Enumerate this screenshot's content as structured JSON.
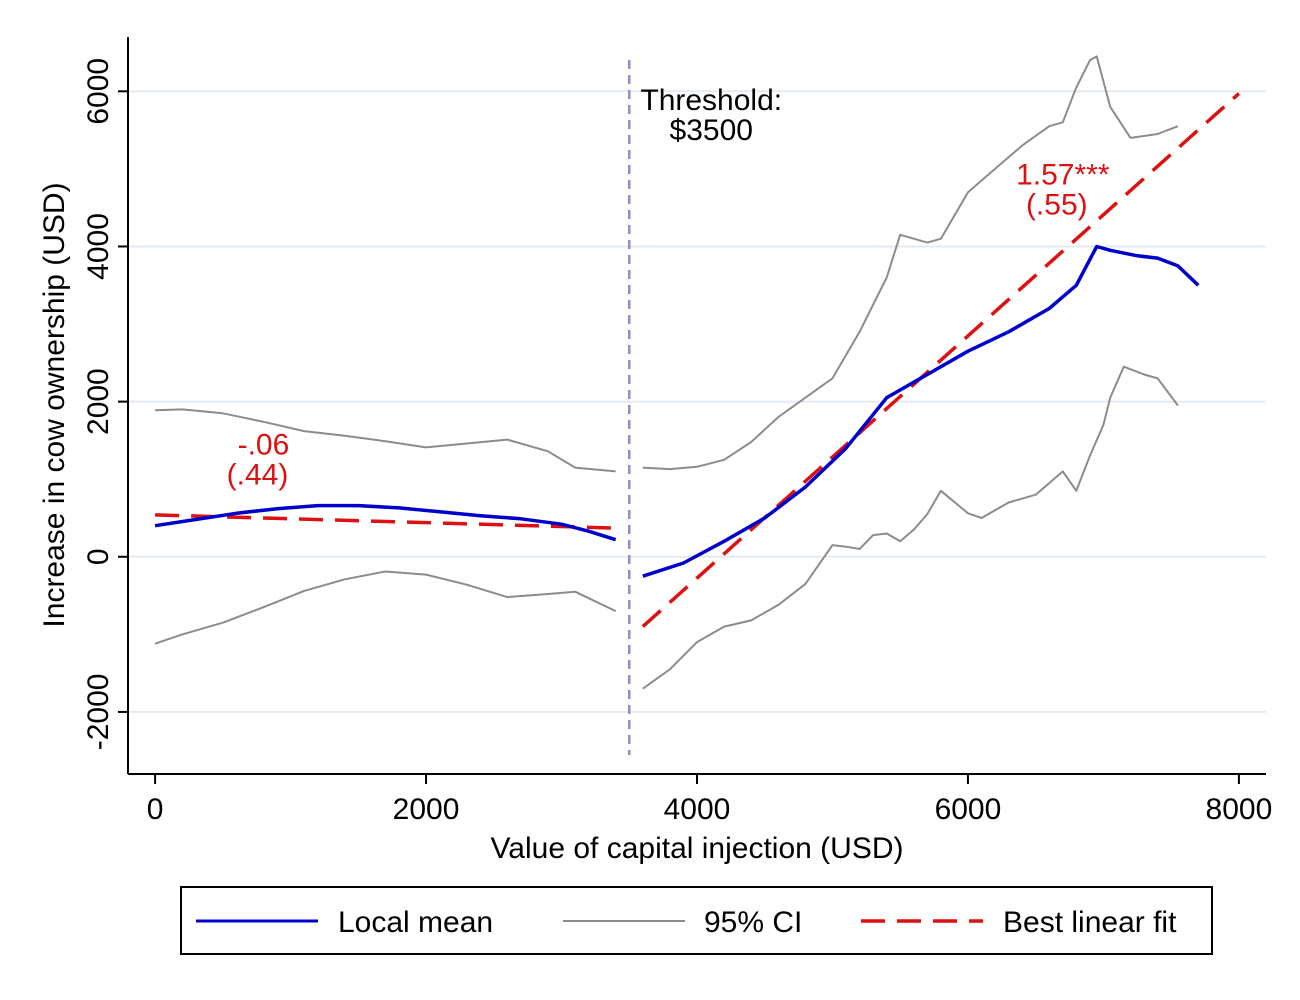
{
  "chart_data": {
    "type": "line",
    "title": "",
    "xlabel": "Value of capital injection (USD)",
    "ylabel": "Increase in cow ownership (USD)",
    "xlim": [
      -200,
      8200
    ],
    "ylim": [
      -2800,
      6700
    ],
    "x_ticks": [
      0,
      2000,
      4000,
      6000,
      8000
    ],
    "y_ticks": [
      -2000,
      0,
      2000,
      4000,
      6000
    ],
    "x_tick_labels": [
      "0",
      "2000",
      "4000",
      "6000",
      "8000"
    ],
    "y_tick_labels": [
      "-2000",
      "0",
      "2000",
      "4000",
      "6000"
    ],
    "grid": "horizontal",
    "colors": {
      "local_mean": "#0000cc",
      "ci": "#8c8c8c",
      "fit": "#dd1111",
      "threshold": "#8f8fc8",
      "grid": "#e4ebf0"
    },
    "threshold": {
      "x": 3500,
      "label_line1": "Threshold:",
      "label_line2": "$3500"
    },
    "annotations": [
      {
        "line1": "-.06",
        "line2": "(.44)",
        "x": 800,
        "y": 1320
      },
      {
        "line1": "1.57***",
        "line2": "(.55)",
        "x": 6700,
        "y": 4800
      }
    ],
    "series": [
      {
        "name": "Local mean",
        "legend": true,
        "segments": [
          {
            "x": [
              0,
              300,
              600,
              900,
              1200,
              1500,
              1800,
              2100,
              2400,
              2700,
              3000,
              3200,
              3400
            ],
            "y": [
              400,
              480,
              560,
              620,
              660,
              660,
              630,
              580,
              530,
              490,
              420,
              330,
              220
            ]
          },
          {
            "x": [
              3600,
              3900,
              4200,
              4500,
              4800,
              5100,
              5400,
              5700,
              6000,
              6300,
              6600,
              6800,
              6950,
              7050,
              7250,
              7400,
              7550,
              7700
            ],
            "y": [
              -250,
              -80,
              200,
              500,
              900,
              1400,
              2050,
              2350,
              2650,
              2900,
              3200,
              3500,
              4000,
              3950,
              3880,
              3850,
              3750,
              3500
            ]
          }
        ]
      },
      {
        "name": "95% CI",
        "legend": true,
        "segments": [
          {
            "x": [
              0,
              200,
              500,
              800,
              1100,
              1400,
              1700,
              2000,
              2300,
              2600,
              2900,
              3100,
              3400
            ],
            "y": [
              1890,
              1900,
              1850,
              1740,
              1620,
              1560,
              1490,
              1410,
              1460,
              1510,
              1360,
              1150,
              1100
            ]
          },
          {
            "x": [
              3600,
              3800,
              4000,
              4200,
              4400,
              4600,
              4800,
              5000,
              5200,
              5400,
              5500,
              5600,
              5700,
              5800,
              6000,
              6200,
              6400,
              6600,
              6700,
              6800,
              6900,
              6950,
              7050,
              7200,
              7400,
              7550
            ],
            "y": [
              1150,
              1130,
              1160,
              1250,
              1480,
              1800,
              2050,
              2300,
              2900,
              3600,
              4150,
              4100,
              4050,
              4100,
              4700,
              5000,
              5300,
              5550,
              5600,
              6050,
              6400,
              6450,
              5800,
              5400,
              5450,
              5550
            ]
          },
          {
            "x": [
              0,
              200,
              500,
              800,
              1100,
              1400,
              1700,
              2000,
              2300,
              2600,
              2900,
              3100,
              3400
            ],
            "y": [
              -1120,
              -1000,
              -850,
              -650,
              -440,
              -290,
              -190,
              -230,
              -360,
              -520,
              -480,
              -450,
              -700
            ]
          },
          {
            "x": [
              3600,
              3800,
              4000,
              4200,
              4400,
              4600,
              4800,
              5000,
              5100,
              5200,
              5300,
              5400,
              5500,
              5600,
              5700,
              5800,
              6000,
              6100,
              6300,
              6500,
              6700,
              6800,
              6900,
              7000,
              7050,
              7150,
              7300,
              7400,
              7550
            ],
            "y": [
              -1700,
              -1450,
              -1100,
              -900,
              -820,
              -620,
              -350,
              150,
              130,
              100,
              280,
              300,
              200,
              350,
              550,
              850,
              560,
              500,
              700,
              800,
              1100,
              850,
              1300,
              1700,
              2050,
              2450,
              2350,
              2300,
              1950
            ]
          }
        ]
      },
      {
        "name": "Best linear fit",
        "legend": true,
        "segments": [
          {
            "x": [
              0,
              3400
            ],
            "y": [
              540,
              370
            ]
          },
          {
            "x": [
              3600,
              8000
            ],
            "y": [
              -900,
              5970
            ]
          }
        ]
      }
    ],
    "legend": {
      "placement": "bottom",
      "items": [
        "Local mean",
        "95% CI",
        "Best linear fit"
      ]
    }
  }
}
